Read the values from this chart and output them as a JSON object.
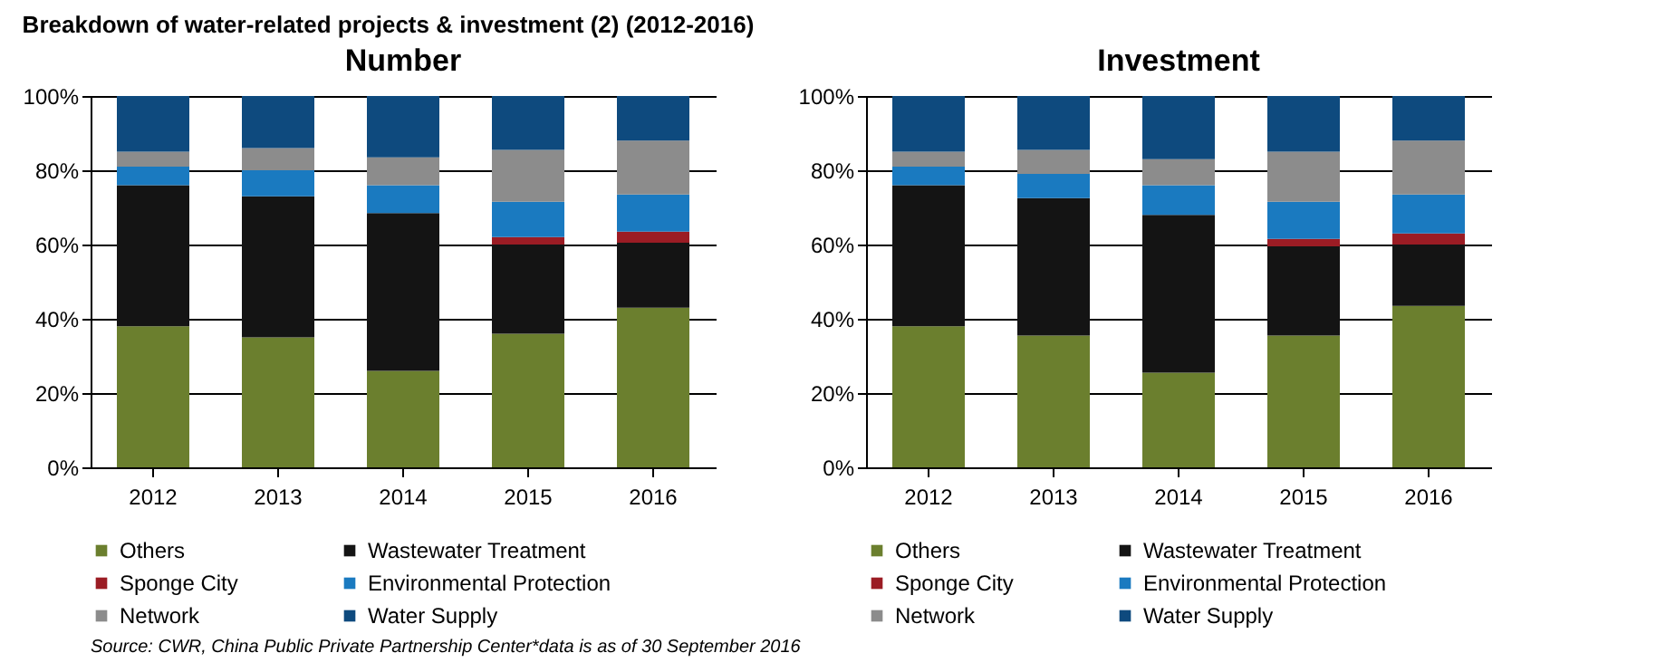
{
  "chart_data": [
    {
      "type": "bar",
      "title": "Number",
      "stacked": true,
      "categories": [
        "2012",
        "2013",
        "2014",
        "2015",
        "2016"
      ],
      "series": [
        {
          "name": "Others",
          "color": "#6b7f2e",
          "values": [
            38,
            35,
            26,
            36,
            43
          ]
        },
        {
          "name": "Wastewater Treatment",
          "color": "#141414",
          "values": [
            38,
            38,
            42.5,
            24,
            17.5
          ]
        },
        {
          "name": "Sponge City",
          "color": "#9b1c24",
          "values": [
            0,
            0,
            0,
            2,
            3
          ]
        },
        {
          "name": "Environmental Protection",
          "color": "#1a7ac0",
          "values": [
            5,
            7,
            7.5,
            9.5,
            10
          ]
        },
        {
          "name": "Network",
          "color": "#8c8c8c",
          "values": [
            4,
            6,
            7.5,
            14,
            14.5
          ]
        },
        {
          "name": "Water Supply",
          "color": "#0e4a7e",
          "values": [
            15,
            14,
            16.5,
            14.5,
            12
          ]
        }
      ],
      "ylim": [
        0,
        100
      ],
      "yticks": [
        {
          "value": 0,
          "label": "0%"
        },
        {
          "value": 20,
          "label": "20%"
        },
        {
          "value": 40,
          "label": "40%"
        },
        {
          "value": 60,
          "label": "60%"
        },
        {
          "value": 80,
          "label": "80%"
        },
        {
          "value": 100,
          "label": "100%"
        }
      ],
      "grid": "y",
      "legend": "bottom",
      "annotations": [
        "Breakdown of water-related projects & investment (2) (2012-2016)",
        "Source: CWR, China Public Private Partnership Center*data is as of 30 September 2016"
      ]
    },
    {
      "type": "bar",
      "title": "Investment",
      "stacked": true,
      "categories": [
        "2012",
        "2013",
        "2014",
        "2015",
        "2016"
      ],
      "series": [
        {
          "name": "Others",
          "color": "#6b7f2e",
          "values": [
            38,
            35.5,
            25.5,
            35.5,
            43.5
          ]
        },
        {
          "name": "Wastewater Treatment",
          "color": "#141414",
          "values": [
            38,
            37,
            42.5,
            24,
            16.5
          ]
        },
        {
          "name": "Sponge City",
          "color": "#9b1c24",
          "values": [
            0,
            0,
            0,
            2,
            3
          ]
        },
        {
          "name": "Environmental Protection",
          "color": "#1a7ac0",
          "values": [
            5,
            6.5,
            8,
            10,
            10.5
          ]
        },
        {
          "name": "Network",
          "color": "#8c8c8c",
          "values": [
            4,
            6.5,
            7,
            13.5,
            14.5
          ]
        },
        {
          "name": "Water Supply",
          "color": "#0e4a7e",
          "values": [
            15,
            14.5,
            17,
            15,
            12
          ]
        }
      ],
      "ylim": [
        0,
        100
      ],
      "yticks": [
        {
          "value": 0,
          "label": "0%"
        },
        {
          "value": 20,
          "label": "20%"
        },
        {
          "value": 40,
          "label": "40%"
        },
        {
          "value": 60,
          "label": "60%"
        },
        {
          "value": 80,
          "label": "80%"
        },
        {
          "value": 100,
          "label": "100%"
        }
      ],
      "grid": "y",
      "legend": "bottom"
    }
  ]
}
